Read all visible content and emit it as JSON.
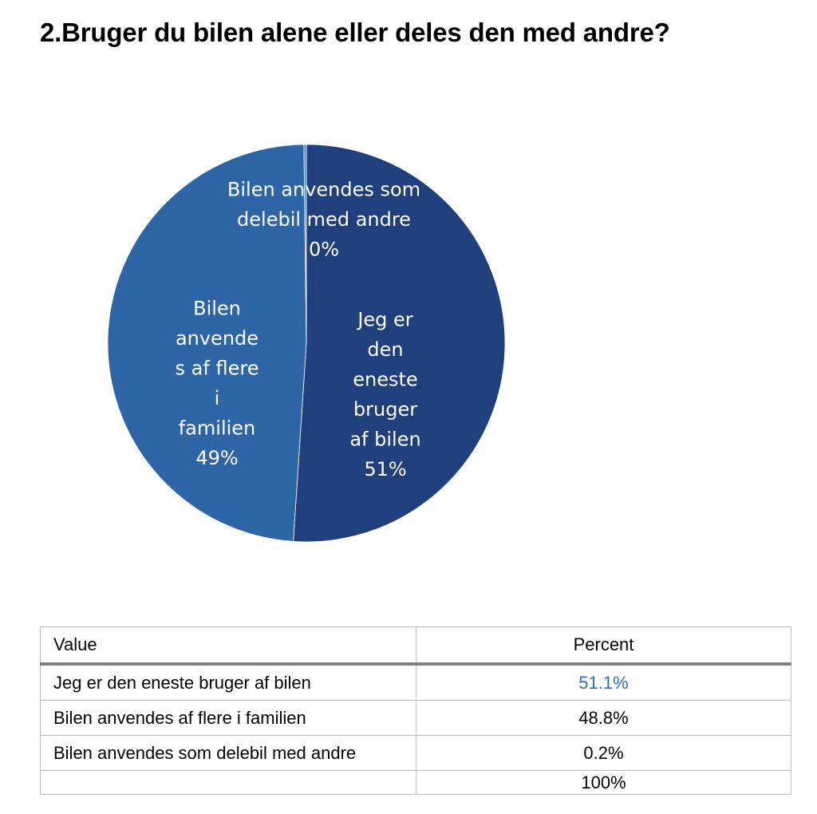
{
  "title": "2.Bruger du bilen alene eller deles den med andre?",
  "chart_data": {
    "type": "pie",
    "title": "",
    "slices": [
      {
        "label_lines": [
          "Jeg er",
          "den",
          "eneste",
          "bruger",
          "af bilen",
          "51%"
        ],
        "value": 51.1,
        "color": "#1f3f7d"
      },
      {
        "label_lines": [
          "Bilen",
          "anvende",
          "s af flere",
          "i",
          "familien",
          "49%"
        ],
        "value": 48.8,
        "color": "#2e65a7"
      },
      {
        "label_lines": [
          "Bilen anvendes som",
          "delebil med andre",
          "0%"
        ],
        "value": 0.2,
        "color": "#4a85c6"
      }
    ]
  },
  "table": {
    "headers": [
      "Value",
      "Percent"
    ],
    "rows": [
      {
        "value": "Jeg er den eneste bruger af bilen",
        "percent": "51.1%"
      },
      {
        "value": "Bilen anvendes af flere i familien",
        "percent": "48.8%"
      },
      {
        "value": "Bilen anvendes som delebil med andre",
        "percent": "0.2%"
      }
    ],
    "total": "100%",
    "highlight_color": "#2e6fc4"
  }
}
